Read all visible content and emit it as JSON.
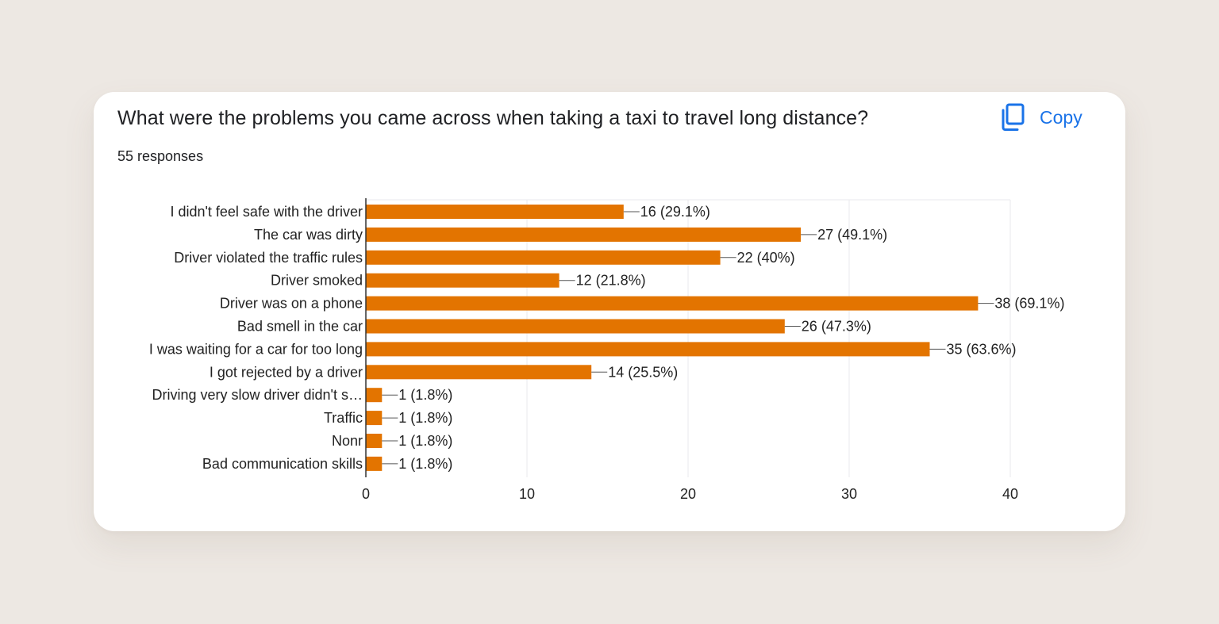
{
  "question": {
    "title": "What were the problems you came across when taking a taxi to travel long distance?",
    "responses": "55 responses"
  },
  "toolbar": {
    "copy_label": "Copy",
    "copy_icon": "copy-icon"
  },
  "colors": {
    "bar": "#e37400",
    "accent": "#1a73e8",
    "grid": "#e8eaed",
    "axis": "#333333",
    "text": "#222222"
  },
  "chart_data": {
    "type": "bar",
    "orientation": "horizontal",
    "categories": [
      "I didn't feel safe with the driver",
      "The car was dirty",
      "Driver violated the traffic rules",
      "Driver smoked",
      "Driver was on a phone",
      "Bad smell in the car",
      "I was waiting for a car for too long",
      "I got rejected by a driver",
      "Driving very slow driver didn't s…",
      "Traffic",
      "Nonr",
      "Bad communication skills"
    ],
    "values": [
      16,
      27,
      22,
      12,
      38,
      26,
      35,
      14,
      1,
      1,
      1,
      1
    ],
    "data_labels": [
      "16 (29.1%)",
      "27 (49.1%)",
      "22 (40%)",
      "12 (21.8%)",
      "38 (69.1%)",
      "26 (47.3%)",
      "35 (63.6%)",
      "14 (25.5%)",
      "1 (1.8%)",
      "1 (1.8%)",
      "1 (1.8%)",
      "1 (1.8%)"
    ],
    "xlim": [
      0,
      40
    ],
    "xticks": [
      0,
      10,
      20,
      30,
      40
    ],
    "xtick_labels": [
      "0",
      "10",
      "20",
      "30",
      "40"
    ],
    "grid": true,
    "legend": "none"
  }
}
